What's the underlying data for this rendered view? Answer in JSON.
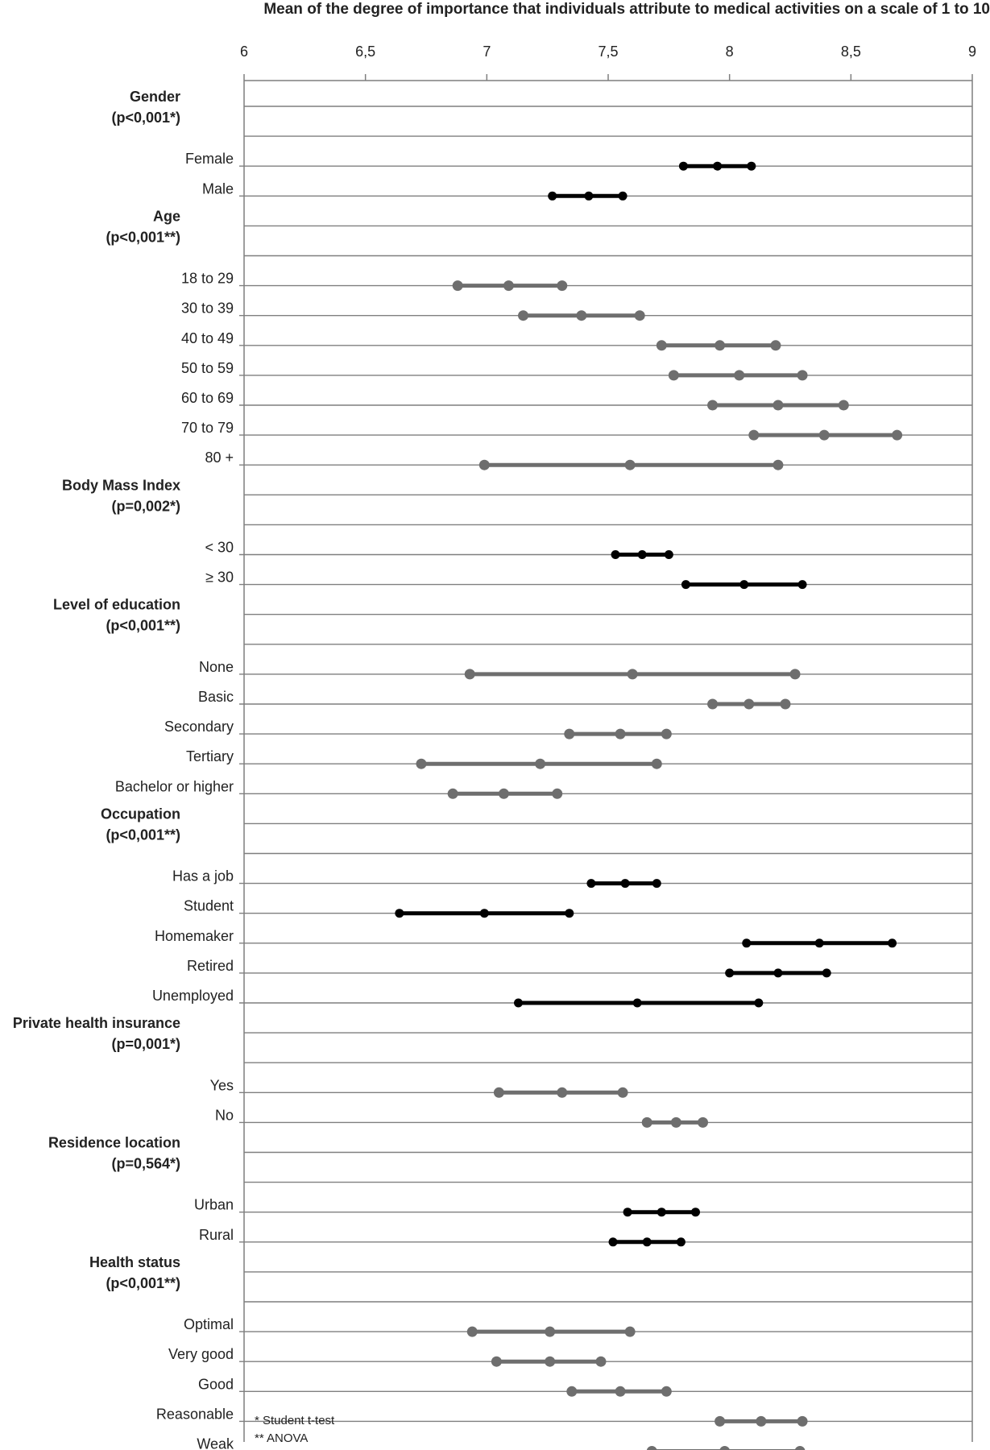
{
  "chart_data": {
    "type": "range",
    "title": "Mean of the degree of importance that individuals attribute to medical activities on a scale of 1 to 10",
    "xlim": [
      6,
      9
    ],
    "x_ticks": [
      "6",
      "6,5",
      "7",
      "7,5",
      "8",
      "8,5",
      "9"
    ],
    "x_tick_values": [
      6,
      6.5,
      7,
      7.5,
      8,
      8.5,
      9
    ],
    "grid": "horizontal",
    "color_significant_mixed": "#000000",
    "color_group_gray": "#6e6e6e",
    "line_color": "#7f7f7f",
    "groups": [
      {
        "name": "Gender",
        "pvalue": "(p<0,001*)",
        "color": "#000000",
        "items": [
          {
            "label": "Female",
            "low": 7.81,
            "mean": 7.95,
            "high": 8.09
          },
          {
            "label": "Male",
            "low": 7.27,
            "mean": 7.42,
            "high": 7.56
          }
        ]
      },
      {
        "name": "Age",
        "pvalue": "(p<0,001**)",
        "color": "#6e6e6e",
        "items": [
          {
            "label": "18 to 29",
            "low": 6.88,
            "mean": 7.09,
            "high": 7.31
          },
          {
            "label": "30 to 39",
            "low": 7.15,
            "mean": 7.39,
            "high": 7.63
          },
          {
            "label": "40 to 49",
            "low": 7.72,
            "mean": 7.96,
            "high": 8.19
          },
          {
            "label": "50 to 59",
            "low": 7.77,
            "mean": 8.04,
            "high": 8.3
          },
          {
            "label": "60 to 69",
            "low": 7.93,
            "mean": 8.2,
            "high": 8.47
          },
          {
            "label": "70 to 79",
            "low": 8.1,
            "mean": 8.39,
            "high": 8.69
          },
          {
            "label": "80 +",
            "low": 6.99,
            "mean": 7.59,
            "high": 8.2
          }
        ]
      },
      {
        "name": "Body Mass Index",
        "pvalue": "(p=0,002*)",
        "color": "#000000",
        "items": [
          {
            "label": "< 30",
            "low": 7.53,
            "mean": 7.64,
            "high": 7.75
          },
          {
            "label": "≥ 30",
            "low": 7.82,
            "mean": 8.06,
            "high": 8.3
          }
        ]
      },
      {
        "name": "Level of education",
        "pvalue": "(p<0,001**)",
        "color": "#6e6e6e",
        "items": [
          {
            "label": "None",
            "low": 6.93,
            "mean": 7.6,
            "high": 8.27
          },
          {
            "label": "Basic",
            "low": 7.93,
            "mean": 8.08,
            "high": 8.23
          },
          {
            "label": "Secondary",
            "low": 7.34,
            "mean": 7.55,
            "high": 7.74
          },
          {
            "label": "Tertiary",
            "low": 6.73,
            "mean": 7.22,
            "high": 7.7
          },
          {
            "label": "Bachelor or higher",
            "low": 6.86,
            "mean": 7.07,
            "high": 7.29
          }
        ]
      },
      {
        "name": "Occupation",
        "pvalue": "(p<0,001**)",
        "color": "#000000",
        "items": [
          {
            "label": "Has a job",
            "low": 7.43,
            "mean": 7.57,
            "high": 7.7
          },
          {
            "label": "Student",
            "low": 6.64,
            "mean": 6.99,
            "high": 7.34
          },
          {
            "label": "Homemaker",
            "low": 8.07,
            "mean": 8.37,
            "high": 8.67
          },
          {
            "label": "Retired",
            "low": 8.0,
            "mean": 8.2,
            "high": 8.4
          },
          {
            "label": "Unemployed",
            "low": 7.13,
            "mean": 7.62,
            "high": 8.12
          }
        ]
      },
      {
        "name": "Private health insurance",
        "pvalue": "(p=0,001*)",
        "color": "#6e6e6e",
        "items": [
          {
            "label": "Yes",
            "low": 7.05,
            "mean": 7.31,
            "high": 7.56
          },
          {
            "label": "No",
            "low": 7.66,
            "mean": 7.78,
            "high": 7.89
          }
        ]
      },
      {
        "name": "Residence location",
        "pvalue": "(p=0,564*)",
        "color": "#000000",
        "items": [
          {
            "label": "Urban",
            "low": 7.58,
            "mean": 7.72,
            "high": 7.86
          },
          {
            "label": "Rural",
            "low": 7.52,
            "mean": 7.66,
            "high": 7.8
          }
        ]
      },
      {
        "name": "Health status",
        "pvalue": "(p<0,001**)",
        "color": "#6e6e6e",
        "items": [
          {
            "label": "Optimal",
            "low": 6.94,
            "mean": 7.26,
            "high": 7.59
          },
          {
            "label": "Very good",
            "low": 7.04,
            "mean": 7.26,
            "high": 7.47
          },
          {
            "label": "Good",
            "low": 7.35,
            "mean": 7.55,
            "high": 7.74
          },
          {
            "label": "Reasonable",
            "low": 7.96,
            "mean": 8.13,
            "high": 8.3
          },
          {
            "label": "Weak",
            "low": 7.68,
            "mean": 7.98,
            "high": 8.29
          }
        ]
      }
    ],
    "footnotes": [
      "* Student t-test",
      "** ANOVA"
    ]
  }
}
